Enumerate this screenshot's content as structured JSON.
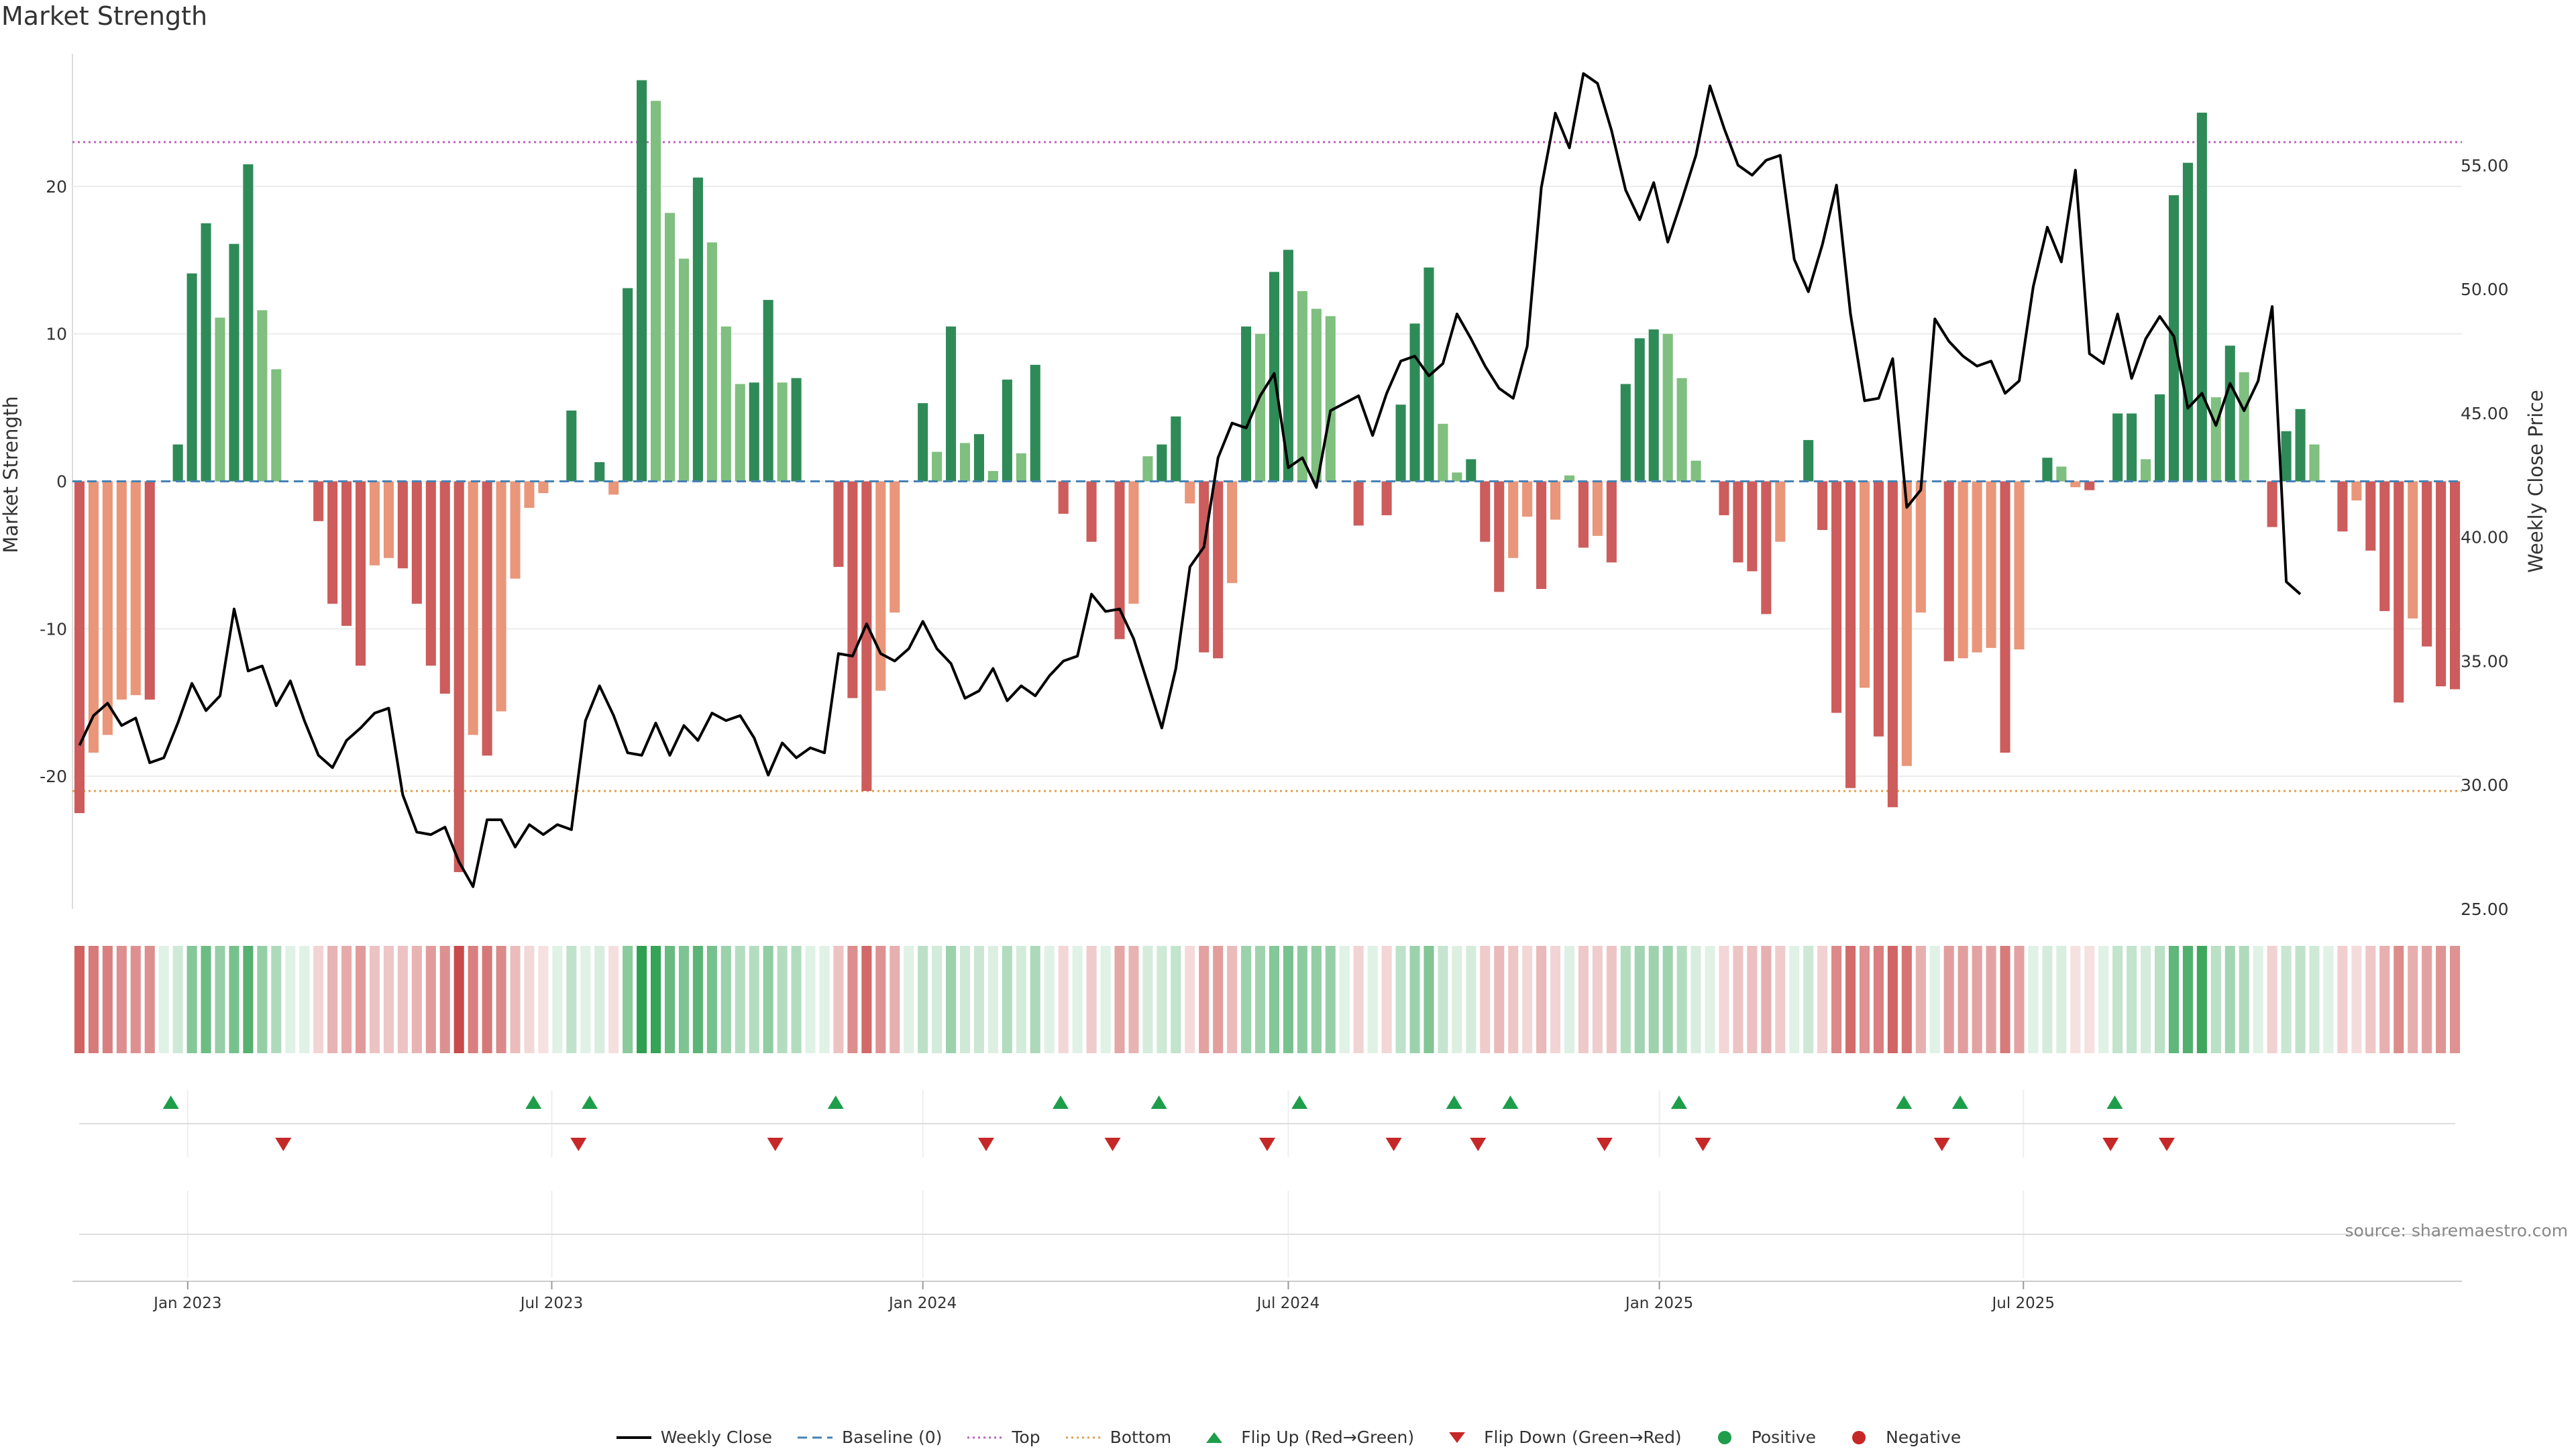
{
  "title": "Market Strength",
  "source_note": "source: sharemaestro.com",
  "colors": {
    "strong_positive": "#2e8b57",
    "weak_positive": "#7fbf7f",
    "strong_negative": "#cd5c5c",
    "weak_negative": "#e9967a",
    "price_line": "#000000",
    "top_line": "#c060c0",
    "bottom_line": "#e0a050",
    "baseline": "#4682b4",
    "flip_up": "#1e9e4a",
    "flip_down": "#c62828"
  },
  "legend": [
    {
      "label": "Weekly Close",
      "icon": "line-solid",
      "color": "#000000"
    },
    {
      "label": "Baseline (0)",
      "icon": "line-dashed",
      "color": "#4682b4"
    },
    {
      "label": "Top",
      "icon": "line-dotted",
      "color": "#c060c0"
    },
    {
      "label": "Bottom",
      "icon": "line-dotted",
      "color": "#e0a050"
    },
    {
      "label": "Flip Up (Red→Green)",
      "icon": "triangle-up",
      "color": "#1e9e4a"
    },
    {
      "label": "Flip Down (Green→Red)",
      "icon": "triangle-down",
      "color": "#c62828"
    },
    {
      "label": "Positive",
      "icon": "dot",
      "color": "#1e9e4a"
    },
    {
      "label": "Negative",
      "icon": "dot",
      "color": "#c62828"
    }
  ],
  "chart_data": {
    "type": "bar",
    "title": "Market Strength",
    "ylabel_left": "Market Strength",
    "ylabel_right": "Weekly Close Price",
    "left_ylim": [
      -29,
      29
    ],
    "left_ticks": [
      -20,
      -10,
      0,
      10,
      20
    ],
    "right_ylim": [
      25,
      59.5
    ],
    "right_ticks": [
      "25.00",
      "30.00",
      "35.00",
      "40.00",
      "45.00",
      "50.00",
      "55.00"
    ],
    "x_tick_labels": [
      "Jan 2023",
      "Jul 2023",
      "Jan 2024",
      "Jul 2024",
      "Jan 2025",
      "Jul 2025"
    ],
    "x_tick_weeks": [
      7.7,
      33.6,
      60,
      86,
      112.4,
      138.3
    ],
    "top_level": 23,
    "bottom_level": -21,
    "baseline": 0,
    "grid": true,
    "legend_position": "bottom",
    "strength_values": [
      -22.5,
      -18.4,
      -17.2,
      -14.8,
      -14.5,
      -14.8,
      0,
      2.5,
      14.1,
      17.5,
      11.1,
      16.1,
      21.5,
      11.6,
      7.6,
      0,
      0,
      -2.7,
      -8.3,
      -9.8,
      -12.5,
      -5.7,
      -5.2,
      -5.9,
      -8.3,
      -12.5,
      -14.4,
      -26.5,
      -17.2,
      -18.6,
      -15.6,
      -6.6,
      -1.8,
      -0.8,
      0,
      4.8,
      0,
      1.3,
      -0.9,
      13.1,
      27.2,
      25.8,
      18.2,
      15.1,
      20.6,
      16.2,
      10.5,
      6.6,
      6.7,
      12.3,
      6.7,
      7,
      0,
      0,
      -5.8,
      -14.7,
      -21,
      -14.2,
      -8.9,
      0,
      5.3,
      2,
      10.5,
      2.6,
      3.2,
      0.7,
      6.9,
      1.9,
      7.9,
      0,
      -2.2,
      0,
      -4.1,
      0,
      -10.7,
      -8.3,
      1.7,
      2.5,
      4.4,
      -1.5,
      -11.6,
      -12,
      -6.9,
      10.5,
      10,
      14.2,
      15.7,
      12.9,
      11.7,
      11.2,
      0,
      -3,
      0,
      -2.3,
      5.2,
      10.7,
      14.5,
      3.9,
      0.6,
      1.5,
      -4.1,
      -7.5,
      -5.2,
      -2.4,
      -7.3,
      -2.6,
      0.4,
      -4.5,
      -3.7,
      -5.5,
      6.6,
      9.7,
      10.3,
      10,
      7,
      1.4,
      0,
      -2.3,
      -5.5,
      -6.1,
      -9,
      -4.1,
      0,
      2.8,
      -3.3,
      -15.7,
      -20.8,
      -14,
      -17.3,
      -22.1,
      -19.3,
      -8.9,
      0,
      -12.2,
      -12,
      -11.6,
      -11.3,
      -18.4,
      -11.4,
      0,
      1.6,
      1,
      -0.4,
      -0.6,
      0,
      4.6,
      4.6,
      1.5,
      5.9,
      19.4,
      21.6,
      25,
      5.7,
      9.2,
      7.4,
      0,
      -3.1,
      3.4,
      4.9,
      2.5,
      0,
      -3.4,
      -1.3,
      -4.7,
      -8.8,
      -15,
      -9.3,
      -11.2,
      -13.9,
      -14.1
    ],
    "weekly_close": [
      31.6,
      32.8,
      33.3,
      32.4,
      32.7,
      30.9,
      31.1,
      32.5,
      34.1,
      33,
      33.6,
      37.1,
      34.6,
      34.8,
      33.2,
      34.2,
      32.6,
      31.2,
      30.7,
      31.8,
      32.3,
      32.9,
      33.1,
      29.6,
      28.1,
      28,
      28.3,
      26.9,
      25.9,
      28.6,
      28.6,
      27.5,
      28.4,
      28,
      28.4,
      28.2,
      32.6,
      34,
      32.8,
      31.3,
      31.2,
      32.5,
      31.2,
      32.4,
      31.8,
      32.9,
      32.6,
      32.8,
      31.9,
      30.4,
      31.7,
      31.1,
      31.5,
      31.3,
      35.3,
      35.2,
      36.5,
      35.3,
      35,
      35.5,
      36.6,
      35.5,
      34.9,
      33.5,
      33.8,
      34.7,
      33.4,
      34,
      33.6,
      34.4,
      35,
      35.2,
      37.7,
      37,
      37.1,
      35.9,
      34.1,
      32.3,
      34.7,
      38.8,
      39.6,
      43.2,
      44.6,
      44.4,
      45.7,
      46.6,
      42.8,
      43.2,
      42,
      45.1,
      45.4,
      45.7,
      44.1,
      45.8,
      47.1,
      47.3,
      46.5,
      47,
      49,
      48,
      46.9,
      46,
      45.6,
      47.7,
      54.1,
      57.1,
      55.7,
      58.7,
      58.3,
      56.4,
      54,
      52.8,
      54.3,
      51.9,
      53.6,
      55.4,
      58.2,
      56.5,
      55,
      54.6,
      55.2,
      55.4,
      51.2,
      49.9,
      51.8,
      54.2,
      49,
      45.5,
      45.6,
      47.2,
      41.2,
      41.9,
      48.8,
      47.9,
      47.3,
      46.9,
      47.1,
      45.8,
      46.3,
      50.1,
      52.5,
      51.1,
      54.8,
      47.4,
      47,
      49,
      46.4,
      48,
      48.9,
      48.1,
      45.2,
      45.8,
      44.5,
      46.2,
      45.1,
      46.3,
      49.3,
      38.2,
      37.7
    ],
    "flip_up_weeks": [
      6.5,
      32.3,
      36.3,
      53.8,
      69.8,
      76.8,
      86.8,
      97.8,
      101.8,
      113.8,
      129.8,
      133.8,
      144.8
    ],
    "flip_down_weeks": [
      14.5,
      35.5,
      49.5,
      64.5,
      73.5,
      84.5,
      93.5,
      99.5,
      108.5,
      115.5,
      132.5,
      144.5,
      148.5
    ]
  }
}
